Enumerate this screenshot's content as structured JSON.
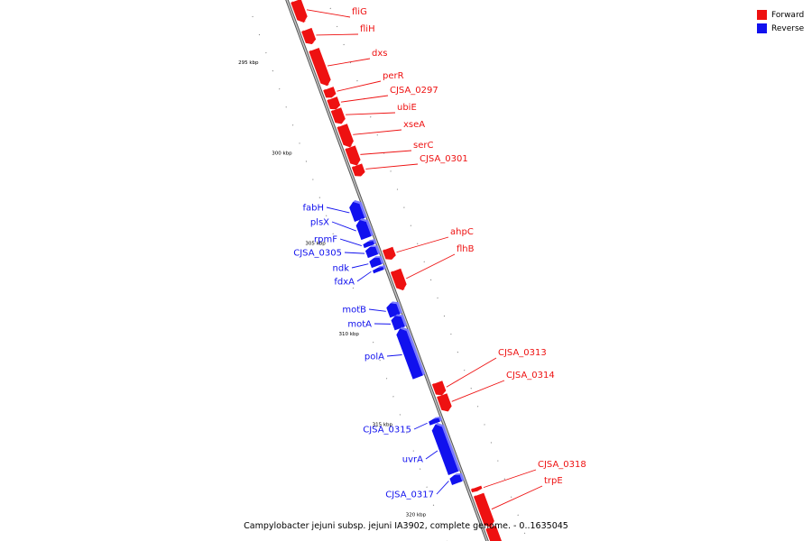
{
  "colors": {
    "forward": "#ee1111",
    "reverse": "#1111ee",
    "backbone": "#999999"
  },
  "legend": [
    {
      "label": "Forward",
      "color": "#ee1111"
    },
    {
      "label": "Reverse",
      "color": "#1111ee"
    }
  ],
  "scale_labels": [
    {
      "kbp": 295,
      "label": "295 kbp"
    },
    {
      "kbp": 300,
      "label": "300 kbp"
    },
    {
      "kbp": 305,
      "label": "305 kbp"
    },
    {
      "kbp": 310,
      "label": "310 kbp"
    },
    {
      "kbp": 315,
      "label": "315 kbp"
    },
    {
      "kbp": 320,
      "label": "320 kbp"
    }
  ],
  "genes": [
    {
      "name": "fliG",
      "strand": "forward",
      "start": 292.5,
      "end": 293.7
    },
    {
      "name": "fliH",
      "strand": "forward",
      "start": 294.1,
      "end": 294.9
    },
    {
      "name": "dxs",
      "strand": "forward",
      "start": 295.2,
      "end": 297.2
    },
    {
      "name": "perR",
      "strand": "forward",
      "start": 297.35,
      "end": 297.85
    },
    {
      "name": "CJSA_0297",
      "strand": "forward",
      "start": 297.9,
      "end": 298.5
    },
    {
      "name": "ubiE",
      "strand": "forward",
      "start": 298.5,
      "end": 299.3
    },
    {
      "name": "xseA",
      "strand": "forward",
      "start": 299.4,
      "end": 300.6
    },
    {
      "name": "serC",
      "strand": "forward",
      "start": 300.6,
      "end": 301.6
    },
    {
      "name": "CJSA_0301",
      "strand": "forward",
      "start": 301.6,
      "end": 302.2
    },
    {
      "name": "fabH",
      "strand": "reverse",
      "start": 303.3,
      "end": 304.3
    },
    {
      "name": "plsX",
      "strand": "reverse",
      "start": 304.3,
      "end": 305.3
    },
    {
      "name": "rpmF",
      "strand": "reverse",
      "start": 305.5,
      "end": 305.75
    },
    {
      "name": "CJSA_0305",
      "strand": "reverse",
      "start": 305.8,
      "end": 306.3
    },
    {
      "name": "ndk",
      "strand": "reverse",
      "start": 306.4,
      "end": 306.85
    },
    {
      "name": "fdxA",
      "strand": "reverse",
      "start": 306.95,
      "end": 307.15
    },
    {
      "name": "ahpC",
      "strand": "forward",
      "start": 306.2,
      "end": 306.8
    },
    {
      "name": "flhB",
      "strand": "forward",
      "start": 307.4,
      "end": 308.5
    },
    {
      "name": "motB",
      "strand": "reverse",
      "start": 308.9,
      "end": 309.6
    },
    {
      "name": "motA",
      "strand": "reverse",
      "start": 309.6,
      "end": 310.3
    },
    {
      "name": "polA",
      "strand": "reverse",
      "start": 310.3,
      "end": 313.0
    },
    {
      "name": "CJSA_0313",
      "strand": "forward",
      "start": 313.6,
      "end": 314.3
    },
    {
      "name": "CJSA_0314",
      "strand": "forward",
      "start": 314.3,
      "end": 315.2
    },
    {
      "name": "CJSA_0315",
      "strand": "reverse",
      "start": 315.3,
      "end": 315.55
    },
    {
      "name": "uvrA",
      "strand": "reverse",
      "start": 315.6,
      "end": 318.3
    },
    {
      "name": "CJSA_0317",
      "strand": "reverse",
      "start": 318.4,
      "end": 318.85
    },
    {
      "name": "CJSA_0318",
      "strand": "forward",
      "start": 319.4,
      "end": 319.6
    },
    {
      "name": "trpE",
      "strand": "forward",
      "start": 319.8,
      "end": 321.6
    },
    {
      "name": "",
      "strand": "forward",
      "start": 321.6,
      "end": 323.2
    }
  ],
  "caption": "Campylobacter jejuni subsp. jejuni IA3902, complete genome. - 0..1635045"
}
